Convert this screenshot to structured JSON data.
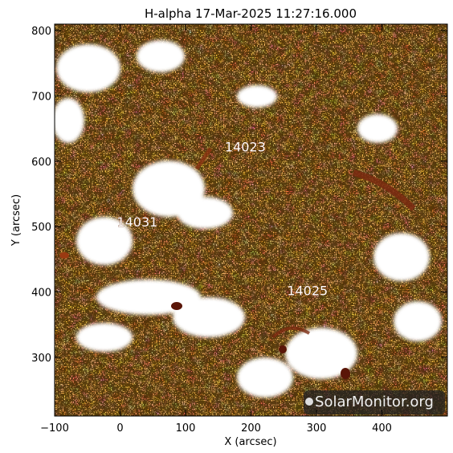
{
  "title": "H-alpha 17-Mar-2025 11:27:16.000",
  "x_axis": {
    "label": "X (arcsec)",
    "range": [
      -100,
      500
    ],
    "ticks": [
      -100,
      0,
      100,
      200,
      300,
      400
    ],
    "tick_labels": [
      "−100",
      "0",
      "100",
      "200",
      "300",
      "400"
    ]
  },
  "y_axis": {
    "label": "Y (arcsec)",
    "range": [
      210,
      810
    ],
    "ticks": [
      300,
      400,
      500,
      600,
      700,
      800
    ],
    "tick_labels": [
      "300",
      "400",
      "500",
      "600",
      "700",
      "800"
    ]
  },
  "regions": [
    {
      "id": "14023",
      "x": 160,
      "y": 615
    },
    {
      "id": "14031",
      "x": -5,
      "y": 500
    },
    {
      "id": "14025",
      "x": 255,
      "y": 395
    }
  ],
  "watermark": "SolarMonitor.org",
  "colors": {
    "base": "#e8781e",
    "dark": "#5a1608",
    "bright": "#ffffff",
    "frame": "#000000"
  }
}
